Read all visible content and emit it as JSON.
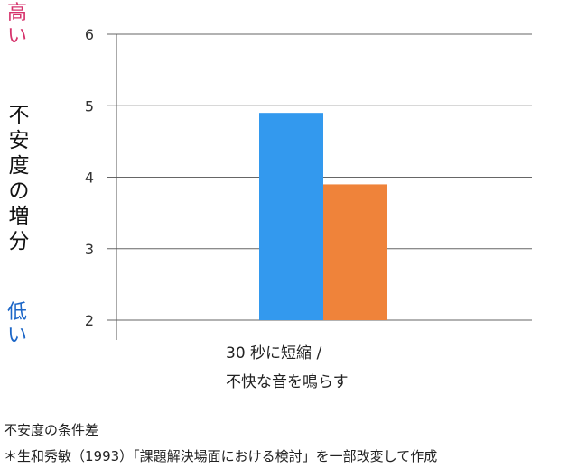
{
  "labels": {
    "high": "高い",
    "low": "低い",
    "ylabel": "不安度の増分",
    "category_line1": "30 秒に短縮 /",
    "category_line2": "不快な音を鳴らす",
    "caption": "不安度の条件差",
    "source": "＊生和秀敏（1993）「課題解決場面における検討」を一部改変して作成"
  },
  "chart_data": {
    "type": "bar",
    "categories": [
      "30 秒に短縮 / 不快な音を鳴らす"
    ],
    "series": [
      {
        "values": [
          4.9
        ],
        "color": "#3399ee"
      },
      {
        "values": [
          3.9
        ],
        "color": "#ef833a"
      }
    ],
    "ylim": [
      2,
      6
    ],
    "yticks": [
      2,
      3,
      4,
      5,
      6
    ],
    "ylabel": "不安度の増分",
    "grid": true
  }
}
